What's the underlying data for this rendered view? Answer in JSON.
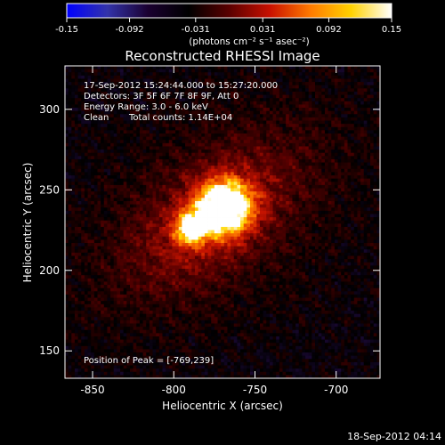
{
  "colorbar": {
    "tick_labels": [
      "-0.15",
      "-0.092",
      "-0.031",
      "0.031",
      "0.092",
      "0.15"
    ],
    "range": [
      -0.15,
      0.15
    ],
    "label": "(photons cm⁻² s⁻¹ asec⁻²)",
    "gradient": [
      "#0000ff",
      "#3333aa",
      "#1a0030",
      "#000000",
      "#5a0000",
      "#c81000",
      "#ff7a00",
      "#ffd200",
      "#ffffff"
    ]
  },
  "chart_data": {
    "type": "heatmap",
    "title": "Reconstructed RHESSI Image",
    "xlabel": "Heliocentric X (arcsec)",
    "ylabel": "Heliocentric Y (arcsec)",
    "xlim": [
      -867,
      -673
    ],
    "ylim": [
      133,
      327
    ],
    "xticks": [
      -850,
      -800,
      -750,
      -700
    ],
    "yticks": [
      150,
      200,
      250,
      300
    ],
    "annotations": {
      "time": "17-Sep-2012 15:24:44.000 to 15:27:20.000",
      "detectors": "Detectors: 3F 5F 6F 7F 8F 9F, Att 0",
      "energy": "Energy Range: 3.0 - 6.0 keV",
      "method": "Clean",
      "counts": "Total counts: 1.14E+04",
      "peak": "Position of Peak = [-769,239]"
    },
    "peak": {
      "x": -769,
      "y": 239
    },
    "value_range": [
      -0.15,
      0.15
    ],
    "sources": [
      {
        "x": -769,
        "y": 239,
        "amp": 0.15,
        "sx": 12,
        "sy": 12
      },
      {
        "x": -790,
        "y": 226,
        "amp": 0.1,
        "sx": 7,
        "sy": 7
      },
      {
        "x": -777,
        "y": 232,
        "amp": 0.055,
        "sx": 42,
        "sy": 22,
        "angle": 38
      },
      {
        "x": -773,
        "y": 237,
        "amp": 0.022,
        "sx": 70,
        "sy": 46,
        "angle": 30
      }
    ]
  },
  "footer": {
    "timestamp": "18-Sep-2012 04:14"
  }
}
